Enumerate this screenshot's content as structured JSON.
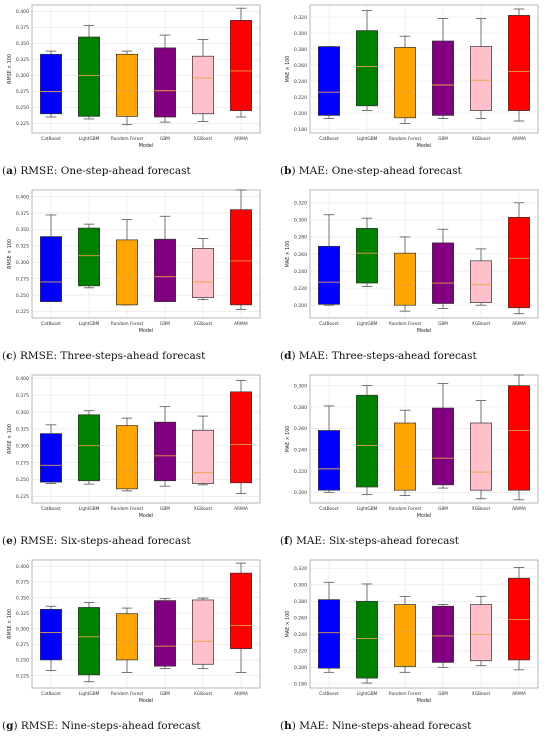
{
  "figure": {
    "panels": [
      {
        "letter": "a",
        "caption": "RMSE: One-step-ahead forecast"
      },
      {
        "letter": "b",
        "caption": "MAE: One-step-ahead forecast"
      },
      {
        "letter": "c",
        "caption": "RMSE: Three-steps-ahead forecast"
      },
      {
        "letter": "d",
        "caption": "MAE: Three-steps-ahead forecast"
      },
      {
        "letter": "e",
        "caption": "RMSE: Six-steps-ahead forecast"
      },
      {
        "letter": "f",
        "caption": "MAE: Six-steps-ahead forecast"
      },
      {
        "letter": "g",
        "caption": "RMSE: Nine-steps-ahead forecast"
      },
      {
        "letter": "h",
        "caption": "MAE: Nine-steps-ahead forecast"
      }
    ]
  },
  "colors": [
    "#0000ff",
    "#008000",
    "#ffa500",
    "#800080",
    "#ffc0cb",
    "#ff0000"
  ],
  "chart_data": [
    {
      "type": "box",
      "xlabel": "Model",
      "ylabel": "RMSE × 100",
      "categories": [
        "CatBoost",
        "LightGBM",
        "Random Forest",
        "GBM",
        "XGBoost",
        "ARIMA"
      ],
      "ylim": [
        0.21,
        0.41
      ],
      "yticks": [
        0.225,
        0.25,
        0.275,
        0.3,
        0.325,
        0.35,
        0.375,
        0.4
      ],
      "boxes": [
        {
          "whislo": 0.235,
          "q1": 0.24,
          "med": 0.275,
          "q3": 0.333,
          "whishi": 0.338
        },
        {
          "whislo": 0.232,
          "q1": 0.236,
          "med": 0.3,
          "q3": 0.36,
          "whishi": 0.378
        },
        {
          "whislo": 0.223,
          "q1": 0.236,
          "med": 0.276,
          "q3": 0.333,
          "whishi": 0.338
        },
        {
          "whislo": 0.227,
          "q1": 0.235,
          "med": 0.276,
          "q3": 0.343,
          "whishi": 0.363
        },
        {
          "whislo": 0.228,
          "q1": 0.24,
          "med": 0.296,
          "q3": 0.33,
          "whishi": 0.356
        },
        {
          "whislo": 0.235,
          "q1": 0.245,
          "med": 0.307,
          "q3": 0.386,
          "whishi": 0.405
        }
      ]
    },
    {
      "type": "box",
      "xlabel": "Model",
      "ylabel": "MAE × 100",
      "categories": [
        "CatBoost",
        "LightGBM",
        "Random Forest",
        "GBM",
        "XGBoost",
        "ARIMA"
      ],
      "ylim": [
        0.175,
        0.335
      ],
      "yticks": [
        0.18,
        0.2,
        0.22,
        0.24,
        0.26,
        0.28,
        0.3,
        0.32
      ],
      "boxes": [
        {
          "whislo": 0.193,
          "q1": 0.197,
          "med": 0.226,
          "q3": 0.283,
          "whishi": 0.283
        },
        {
          "whislo": 0.203,
          "q1": 0.209,
          "med": 0.258,
          "q3": 0.303,
          "whishi": 0.328
        },
        {
          "whislo": 0.187,
          "q1": 0.194,
          "med": 0.226,
          "q3": 0.282,
          "whishi": 0.296
        },
        {
          "whislo": 0.193,
          "q1": 0.197,
          "med": 0.235,
          "q3": 0.29,
          "whishi": 0.318
        },
        {
          "whislo": 0.193,
          "q1": 0.203,
          "med": 0.241,
          "q3": 0.283,
          "whishi": 0.318
        },
        {
          "whislo": 0.19,
          "q1": 0.203,
          "med": 0.252,
          "q3": 0.322,
          "whishi": 0.33
        }
      ]
    },
    {
      "type": "box",
      "xlabel": "Model",
      "ylabel": "RMSE × 100",
      "categories": [
        "CatBoost",
        "LightGBM",
        "Random Forest",
        "GBM",
        "XGBoost",
        "ARIMA"
      ],
      "ylim": [
        0.215,
        0.41
      ],
      "yticks": [
        0.225,
        0.25,
        0.275,
        0.3,
        0.325,
        0.35,
        0.375,
        0.4
      ],
      "boxes": [
        {
          "whislo": 0.24,
          "q1": 0.24,
          "med": 0.27,
          "q3": 0.339,
          "whishi": 0.372
        },
        {
          "whislo": 0.261,
          "q1": 0.264,
          "med": 0.31,
          "q3": 0.352,
          "whishi": 0.358
        },
        {
          "whislo": 0.235,
          "q1": 0.235,
          "med": 0.277,
          "q3": 0.334,
          "whishi": 0.365
        },
        {
          "whislo": 0.24,
          "q1": 0.24,
          "med": 0.278,
          "q3": 0.335,
          "whishi": 0.37
        },
        {
          "whislo": 0.243,
          "q1": 0.246,
          "med": 0.27,
          "q3": 0.321,
          "whishi": 0.336
        },
        {
          "whislo": 0.228,
          "q1": 0.235,
          "med": 0.302,
          "q3": 0.38,
          "whishi": 0.41
        }
      ]
    },
    {
      "type": "box",
      "xlabel": "Model",
      "ylabel": "MAE × 100",
      "categories": [
        "CatBoost",
        "LightGBM",
        "Random Forest",
        "GBM",
        "XGBoost",
        "ARIMA"
      ],
      "ylim": [
        0.185,
        0.335
      ],
      "yticks": [
        0.2,
        0.22,
        0.24,
        0.26,
        0.28,
        0.3,
        0.32
      ],
      "boxes": [
        {
          "whislo": 0.2,
          "q1": 0.201,
          "med": 0.227,
          "q3": 0.269,
          "whishi": 0.306
        },
        {
          "whislo": 0.222,
          "q1": 0.226,
          "med": 0.261,
          "q3": 0.29,
          "whishi": 0.302
        },
        {
          "whislo": 0.193,
          "q1": 0.2,
          "med": 0.224,
          "q3": 0.261,
          "whishi": 0.28
        },
        {
          "whislo": 0.196,
          "q1": 0.202,
          "med": 0.226,
          "q3": 0.273,
          "whishi": 0.289
        },
        {
          "whislo": 0.2,
          "q1": 0.203,
          "med": 0.224,
          "q3": 0.252,
          "whishi": 0.266
        },
        {
          "whislo": 0.19,
          "q1": 0.197,
          "med": 0.255,
          "q3": 0.303,
          "whishi": 0.32
        }
      ]
    },
    {
      "type": "box",
      "xlabel": "Model",
      "ylabel": "RMSE × 100",
      "categories": [
        "CatBoost",
        "LightGBM",
        "Random Forest",
        "GBM",
        "XGBoost",
        "ARIMA"
      ],
      "ylim": [
        0.215,
        0.405
      ],
      "yticks": [
        0.225,
        0.25,
        0.275,
        0.3,
        0.325,
        0.35,
        0.375,
        0.4
      ],
      "boxes": [
        {
          "whislo": 0.244,
          "q1": 0.246,
          "med": 0.271,
          "q3": 0.318,
          "whishi": 0.331
        },
        {
          "whislo": 0.243,
          "q1": 0.248,
          "med": 0.3,
          "q3": 0.346,
          "whishi": 0.352
        },
        {
          "whislo": 0.233,
          "q1": 0.236,
          "med": 0.264,
          "q3": 0.33,
          "whishi": 0.341
        },
        {
          "whislo": 0.24,
          "q1": 0.248,
          "med": 0.285,
          "q3": 0.335,
          "whishi": 0.358
        },
        {
          "whislo": 0.242,
          "q1": 0.244,
          "med": 0.26,
          "q3": 0.323,
          "whishi": 0.344
        },
        {
          "whislo": 0.229,
          "q1": 0.245,
          "med": 0.302,
          "q3": 0.38,
          "whishi": 0.397
        }
      ]
    },
    {
      "type": "box",
      "xlabel": "Model",
      "ylabel": "MAE × 100",
      "categories": [
        "CatBoost",
        "LightGBM",
        "Random Forest",
        "GBM",
        "XGBoost",
        "ARIMA"
      ],
      "ylim": [
        0.19,
        0.31
      ],
      "yticks": [
        0.2,
        0.22,
        0.24,
        0.26,
        0.28,
        0.3
      ],
      "boxes": [
        {
          "whislo": 0.2,
          "q1": 0.202,
          "med": 0.222,
          "q3": 0.258,
          "whishi": 0.281
        },
        {
          "whislo": 0.198,
          "q1": 0.205,
          "med": 0.244,
          "q3": 0.291,
          "whishi": 0.3
        },
        {
          "whislo": 0.197,
          "q1": 0.202,
          "med": 0.224,
          "q3": 0.265,
          "whishi": 0.277
        },
        {
          "whislo": 0.204,
          "q1": 0.207,
          "med": 0.232,
          "q3": 0.279,
          "whishi": 0.302
        },
        {
          "whislo": 0.194,
          "q1": 0.202,
          "med": 0.219,
          "q3": 0.265,
          "whishi": 0.286
        },
        {
          "whislo": 0.193,
          "q1": 0.202,
          "med": 0.258,
          "q3": 0.3,
          "whishi": 0.31
        }
      ]
    },
    {
      "type": "box",
      "xlabel": "Model",
      "ylabel": "RMSE × 100",
      "categories": [
        "CatBoost",
        "LightGBM",
        "Random Forest",
        "GBM",
        "XGBoost",
        "ARIMA"
      ],
      "ylim": [
        0.205,
        0.41
      ],
      "yticks": [
        0.225,
        0.25,
        0.275,
        0.3,
        0.325,
        0.35,
        0.375,
        0.4
      ],
      "boxes": [
        {
          "whislo": 0.233,
          "q1": 0.25,
          "med": 0.294,
          "q3": 0.331,
          "whishi": 0.336
        },
        {
          "whislo": 0.215,
          "q1": 0.226,
          "med": 0.287,
          "q3": 0.334,
          "whishi": 0.342
        },
        {
          "whislo": 0.23,
          "q1": 0.25,
          "med": 0.279,
          "q3": 0.324,
          "whishi": 0.333
        },
        {
          "whislo": 0.236,
          "q1": 0.24,
          "med": 0.272,
          "q3": 0.345,
          "whishi": 0.348
        },
        {
          "whislo": 0.236,
          "q1": 0.243,
          "med": 0.28,
          "q3": 0.346,
          "whishi": 0.349
        },
        {
          "whislo": 0.23,
          "q1": 0.268,
          "med": 0.305,
          "q3": 0.389,
          "whishi": 0.405
        }
      ]
    },
    {
      "type": "box",
      "xlabel": "Model",
      "ylabel": "MAE × 100",
      "categories": [
        "CatBoost",
        "LightGBM",
        "Random Forest",
        "GBM",
        "XGBoost",
        "ARIMA"
      ],
      "ylim": [
        0.175,
        0.33
      ],
      "yticks": [
        0.18,
        0.2,
        0.22,
        0.24,
        0.26,
        0.28,
        0.3,
        0.32
      ],
      "boxes": [
        {
          "whislo": 0.194,
          "q1": 0.199,
          "med": 0.242,
          "q3": 0.282,
          "whishi": 0.303
        },
        {
          "whislo": 0.181,
          "q1": 0.187,
          "med": 0.235,
          "q3": 0.28,
          "whishi": 0.301
        },
        {
          "whislo": 0.194,
          "q1": 0.201,
          "med": 0.243,
          "q3": 0.276,
          "whishi": 0.286
        },
        {
          "whislo": 0.2,
          "q1": 0.206,
          "med": 0.238,
          "q3": 0.274,
          "whishi": 0.276
        },
        {
          "whislo": 0.202,
          "q1": 0.208,
          "med": 0.24,
          "q3": 0.276,
          "whishi": 0.286
        },
        {
          "whislo": 0.197,
          "q1": 0.209,
          "med": 0.258,
          "q3": 0.308,
          "whishi": 0.321
        }
      ]
    }
  ]
}
